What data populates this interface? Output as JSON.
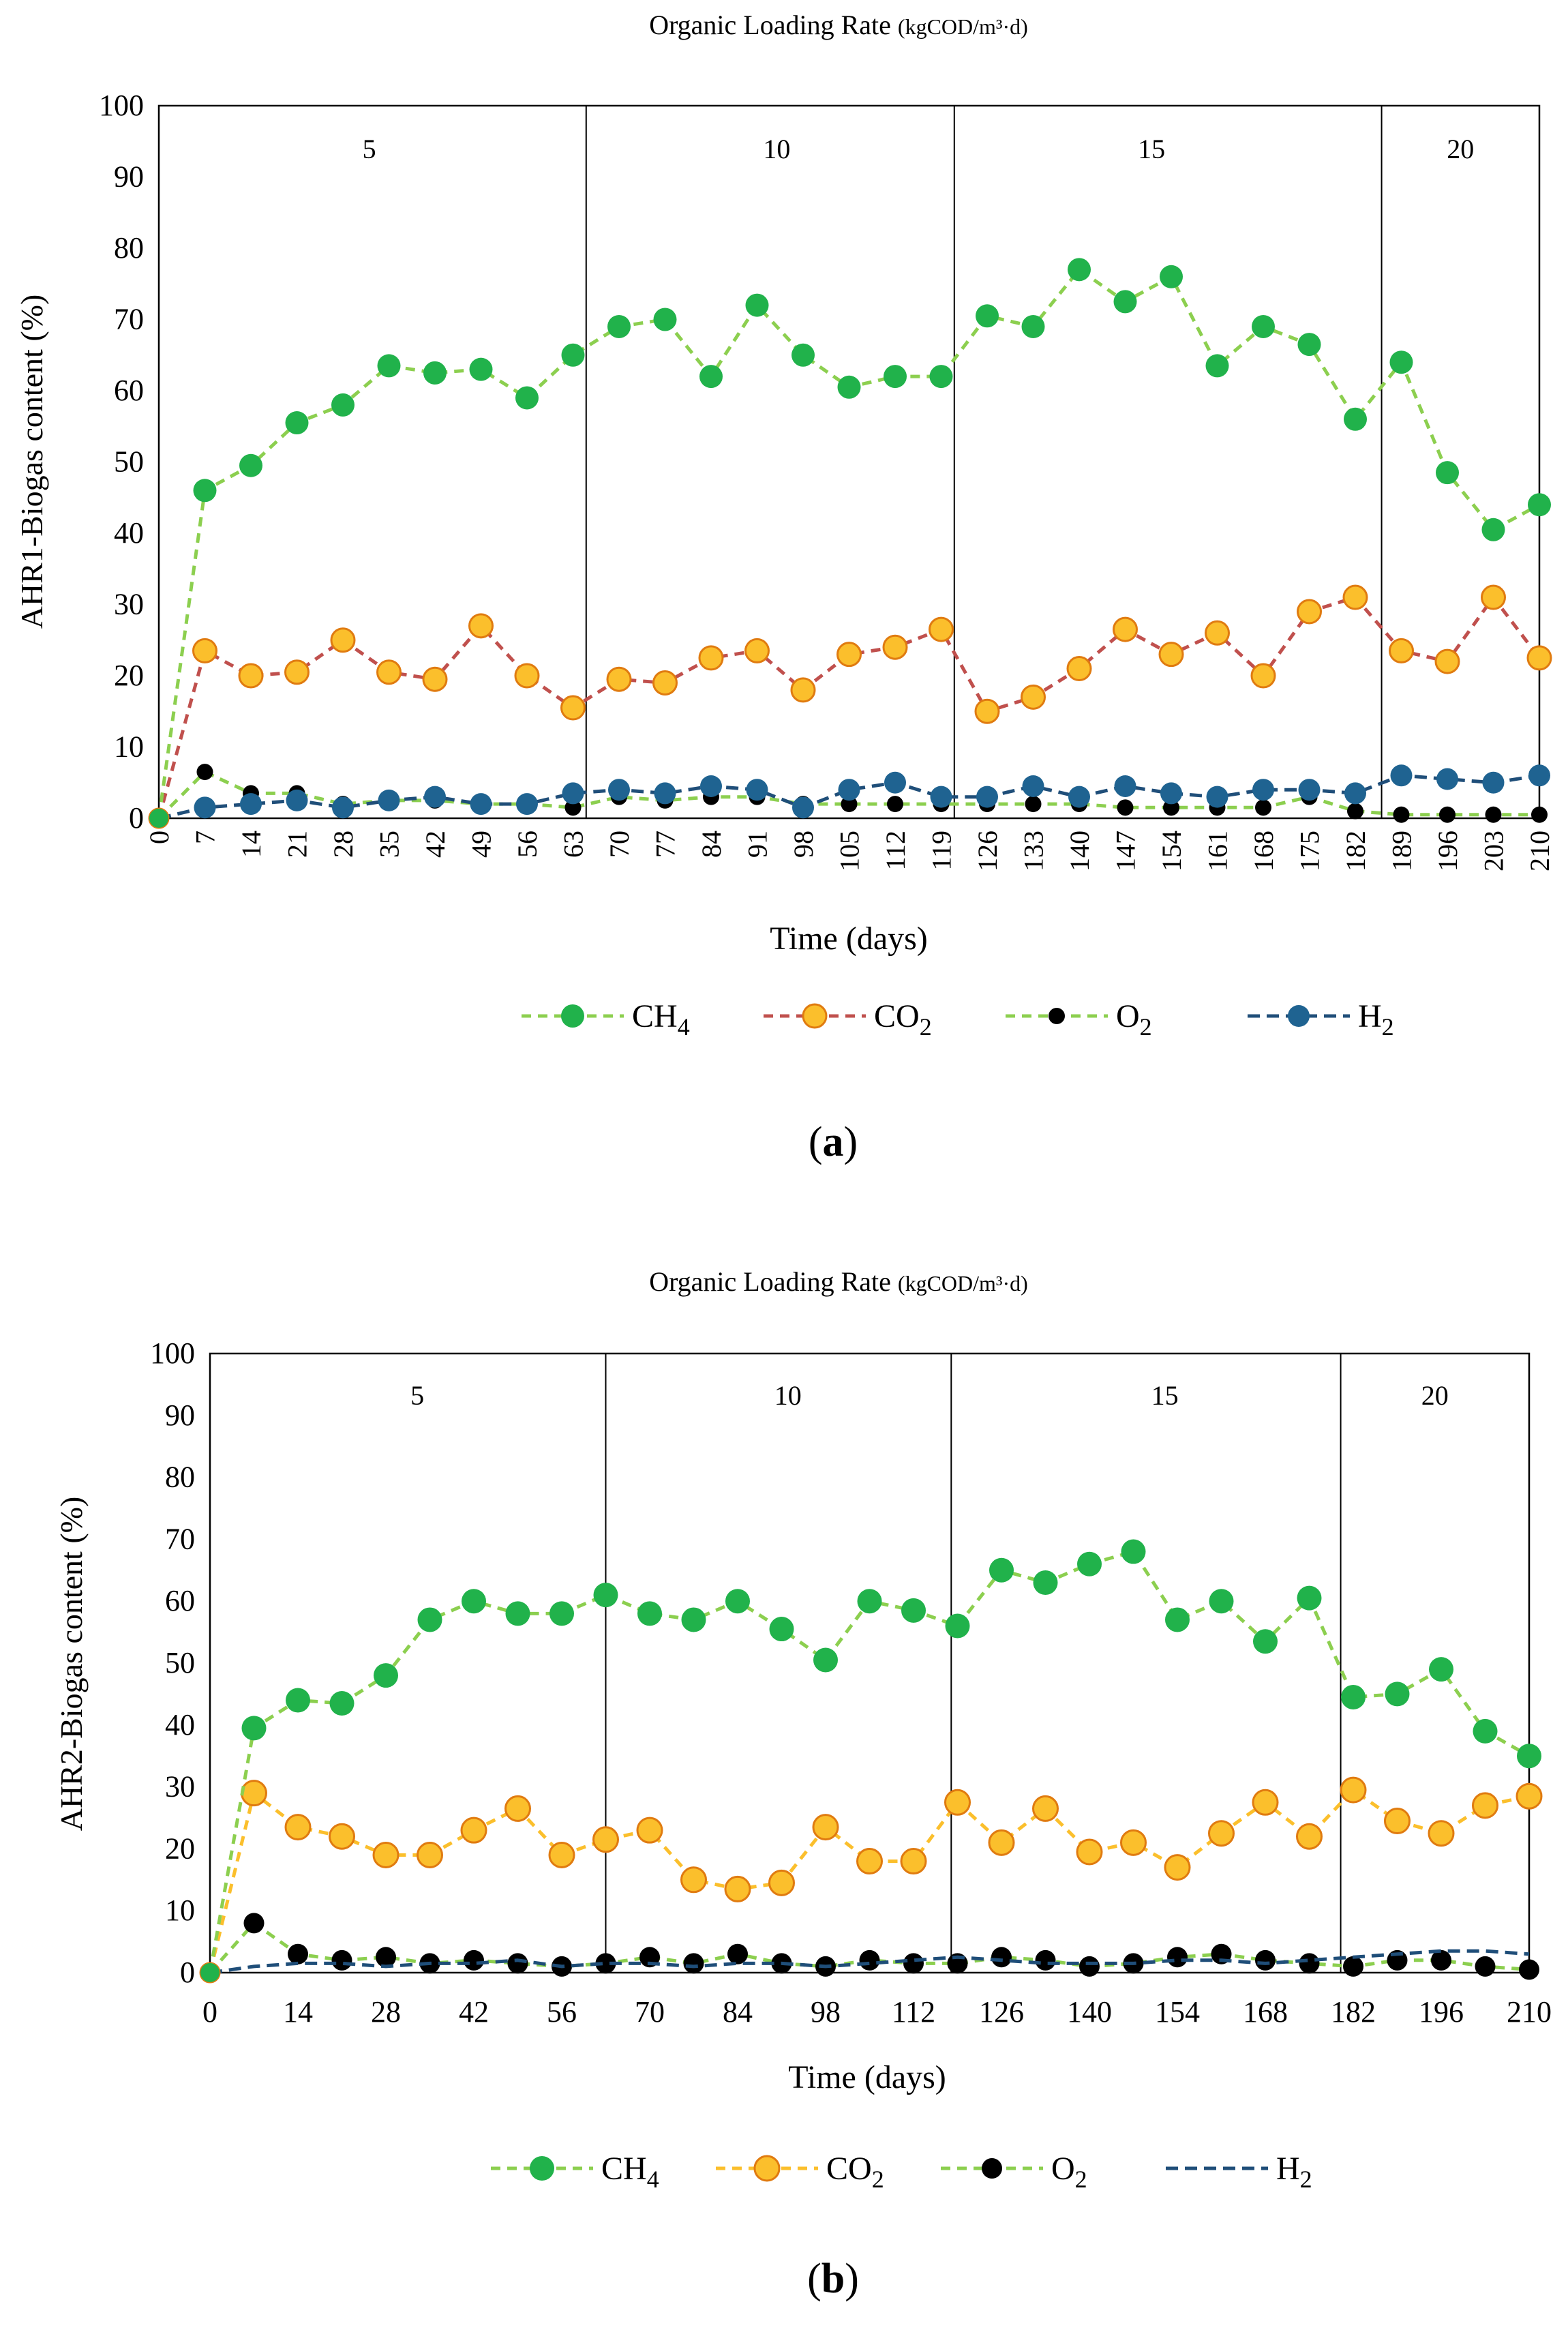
{
  "colors": {
    "ch4_fill": "#21b24b",
    "ch4_line": "#8ccf4f",
    "co2_fill": "#fbbf2c",
    "co2_stroke": "#e07b10",
    "co2_line_a": "#c0504d",
    "co2_line_b": "#fbbf2c",
    "o2_fill": "#000000",
    "o2_line": "#8ccf4f",
    "h2_fill": "#1f6391",
    "h2_line": "#1f4e79"
  },
  "chart_data": [
    {
      "type": "line",
      "panel_label": "a",
      "title": "Organic Loading Rate",
      "title_unit": "(kgCOD/m³·d)",
      "xlabel": "Time (days)",
      "ylabel": "AHR1-Biogas content (%)",
      "ylim": [
        0,
        100
      ],
      "yticks": [
        0,
        10,
        20,
        30,
        40,
        50,
        60,
        70,
        80,
        90,
        100
      ],
      "xlim": [
        0,
        210
      ],
      "xticks": [
        0,
        7,
        14,
        21,
        28,
        35,
        42,
        49,
        56,
        63,
        70,
        77,
        84,
        91,
        98,
        105,
        112,
        119,
        126,
        133,
        140,
        147,
        154,
        161,
        168,
        175,
        182,
        189,
        196,
        203,
        210
      ],
      "xtick_rotation": -90,
      "x": [
        0,
        7,
        14,
        21,
        28,
        35,
        42,
        49,
        56,
        63,
        70,
        77,
        84,
        91,
        98,
        105,
        112,
        119,
        126,
        133,
        140,
        147,
        154,
        161,
        168,
        175,
        182,
        189,
        196,
        203,
        210
      ],
      "phase_dividers": [
        65,
        121,
        186
      ],
      "phases": [
        {
          "label": "5",
          "x": 32
        },
        {
          "label": "10",
          "x": 94
        },
        {
          "label": "15",
          "x": 151
        },
        {
          "label": "20",
          "x": 198
        }
      ],
      "series": [
        {
          "name": "CH4",
          "base": "CH",
          "sub": "4",
          "values": [
            0,
            46,
            49.5,
            55.5,
            58,
            63.5,
            62.5,
            63,
            59,
            65,
            69,
            70,
            62,
            72,
            65,
            60.5,
            62,
            62,
            70.5,
            69,
            77,
            72.5,
            76,
            63.5,
            69,
            66.5,
            56,
            64,
            48.5,
            40.5,
            44
          ]
        },
        {
          "name": "CO2",
          "base": "CO",
          "sub": "2",
          "values": [
            0,
            23.5,
            20,
            20.5,
            25,
            20.5,
            19.5,
            27,
            20,
            15.5,
            19.5,
            19,
            22.5,
            23.5,
            18,
            23,
            24,
            26.5,
            15,
            17,
            21,
            26.5,
            23,
            26,
            20,
            29,
            31,
            23.5,
            22,
            31,
            22.5
          ]
        },
        {
          "name": "O2",
          "base": "O",
          "sub": "2",
          "values": [
            0,
            6.5,
            3.5,
            3.5,
            2,
            2.5,
            2.5,
            2,
            2,
            1.5,
            3,
            2.5,
            3,
            3,
            2,
            2,
            2,
            2,
            2,
            2,
            2,
            1.5,
            1.5,
            1.5,
            1.5,
            3,
            1,
            0.5,
            0.5,
            0.5,
            0.5
          ]
        },
        {
          "name": "H2",
          "base": "H",
          "sub": "2",
          "values": [
            0,
            1.5,
            2,
            2.5,
            1.5,
            2.5,
            3,
            2,
            2,
            3.5,
            4,
            3.5,
            4.5,
            4,
            1.5,
            4,
            5,
            3,
            3,
            4.5,
            3,
            4.5,
            3.5,
            3,
            4,
            4,
            3.5,
            6,
            5.5,
            5,
            6
          ]
        }
      ]
    },
    {
      "type": "line",
      "panel_label": "b",
      "title": "Organic Loading Rate",
      "title_unit": "(kgCOD/m³·d)",
      "xlabel": "Time (days)",
      "ylabel": "AHR2-Biogas content (%)",
      "ylim": [
        0,
        100
      ],
      "yticks": [
        0,
        10,
        20,
        30,
        40,
        50,
        60,
        70,
        80,
        90,
        100
      ],
      "xlim": [
        0,
        210
      ],
      "xticks": [
        0,
        14,
        28,
        42,
        56,
        70,
        84,
        98,
        112,
        126,
        140,
        154,
        168,
        182,
        196,
        210
      ],
      "xtick_rotation": 0,
      "x": [
        0,
        7,
        14,
        21,
        28,
        35,
        42,
        49,
        56,
        63,
        70,
        77,
        84,
        91,
        98,
        105,
        112,
        119,
        126,
        133,
        140,
        147,
        154,
        161,
        168,
        175,
        182,
        189,
        196,
        203,
        210
      ],
      "phase_dividers": [
        63,
        118,
        180
      ],
      "phases": [
        {
          "label": "5",
          "x": 33
        },
        {
          "label": "10",
          "x": 92
        },
        {
          "label": "15",
          "x": 152
        },
        {
          "label": "20",
          "x": 195
        }
      ],
      "series": [
        {
          "name": "CH4",
          "base": "CH",
          "sub": "4",
          "values": [
            0,
            39.5,
            44,
            43.5,
            48,
            57,
            60,
            58,
            58,
            61,
            58,
            57,
            60,
            55.5,
            50.5,
            60,
            58.5,
            56,
            65,
            63,
            66,
            68,
            57,
            60,
            53.5,
            60.5,
            44.5,
            45,
            49,
            39,
            35
          ]
        },
        {
          "name": "CO2",
          "base": "CO",
          "sub": "2",
          "values": [
            0,
            29,
            23.5,
            22,
            19,
            19,
            23,
            26.5,
            19,
            21.5,
            23,
            15,
            13.5,
            14.5,
            23.5,
            18,
            18,
            27.5,
            21,
            26.5,
            19.5,
            21,
            17,
            22.5,
            27.5,
            22,
            29.5,
            24.5,
            22.5,
            27,
            28.5
          ]
        },
        {
          "name": "O2",
          "base": "O",
          "sub": "2",
          "values": [
            0,
            8,
            3,
            2,
            2.5,
            1.5,
            2,
            1.5,
            1,
            1.5,
            2.5,
            1.5,
            3,
            1.5,
            1,
            2,
            1.5,
            1.5,
            2.5,
            2,
            1,
            1.5,
            2.5,
            3,
            2,
            1.5,
            1,
            2,
            2,
            1,
            0.5
          ]
        },
        {
          "name": "H2",
          "base": "H",
          "sub": "2",
          "values": [
            0,
            1,
            1.5,
            1.5,
            1,
            1.5,
            1.5,
            2,
            1,
            1.5,
            1.5,
            1,
            1.5,
            1.5,
            1,
            1.5,
            2,
            2.5,
            2,
            1.5,
            1.5,
            1.5,
            2,
            2,
            1.5,
            2,
            2.5,
            3,
            3.5,
            3.5,
            3
          ]
        }
      ]
    }
  ]
}
